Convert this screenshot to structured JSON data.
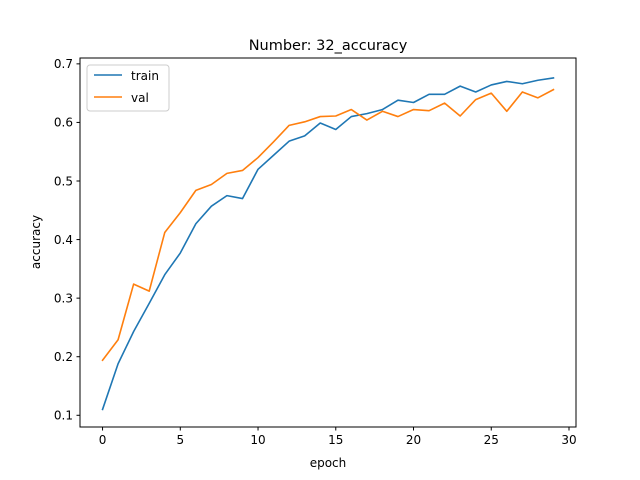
{
  "chart_data": {
    "type": "line",
    "title": "Number: 32_accuracy",
    "xlabel": "epoch",
    "ylabel": "accuracy",
    "xlim": [
      -1.45,
      30.45
    ],
    "ylim": [
      0.08,
      0.71
    ],
    "xticks": [
      0,
      5,
      10,
      15,
      20,
      25,
      30
    ],
    "yticks": [
      0.1,
      0.2,
      0.3,
      0.4,
      0.5,
      0.6,
      0.7
    ],
    "legend_position": "top-left",
    "grid": false,
    "x": [
      0,
      1,
      2,
      3,
      4,
      5,
      6,
      7,
      8,
      9,
      10,
      11,
      12,
      13,
      14,
      15,
      16,
      17,
      18,
      19,
      20,
      21,
      22,
      23,
      24,
      25,
      26,
      27,
      28,
      29
    ],
    "series": [
      {
        "name": "train",
        "color": "#1f77b4",
        "values": [
          0.11,
          0.188,
          0.243,
          0.291,
          0.34,
          0.377,
          0.427,
          0.457,
          0.475,
          0.47,
          0.52,
          0.544,
          0.568,
          0.577,
          0.599,
          0.588,
          0.61,
          0.615,
          0.622,
          0.638,
          0.634,
          0.648,
          0.648,
          0.662,
          0.652,
          0.664,
          0.67,
          0.666,
          0.672,
          0.676
        ]
      },
      {
        "name": "val",
        "color": "#ff7f0e",
        "values": [
          0.194,
          0.229,
          0.324,
          0.312,
          0.412,
          0.446,
          0.484,
          0.494,
          0.513,
          0.518,
          0.54,
          0.567,
          0.595,
          0.601,
          0.61,
          0.611,
          0.622,
          0.604,
          0.619,
          0.61,
          0.622,
          0.62,
          0.633,
          0.611,
          0.639,
          0.65,
          0.619,
          0.652,
          0.642,
          0.656
        ]
      }
    ]
  }
}
